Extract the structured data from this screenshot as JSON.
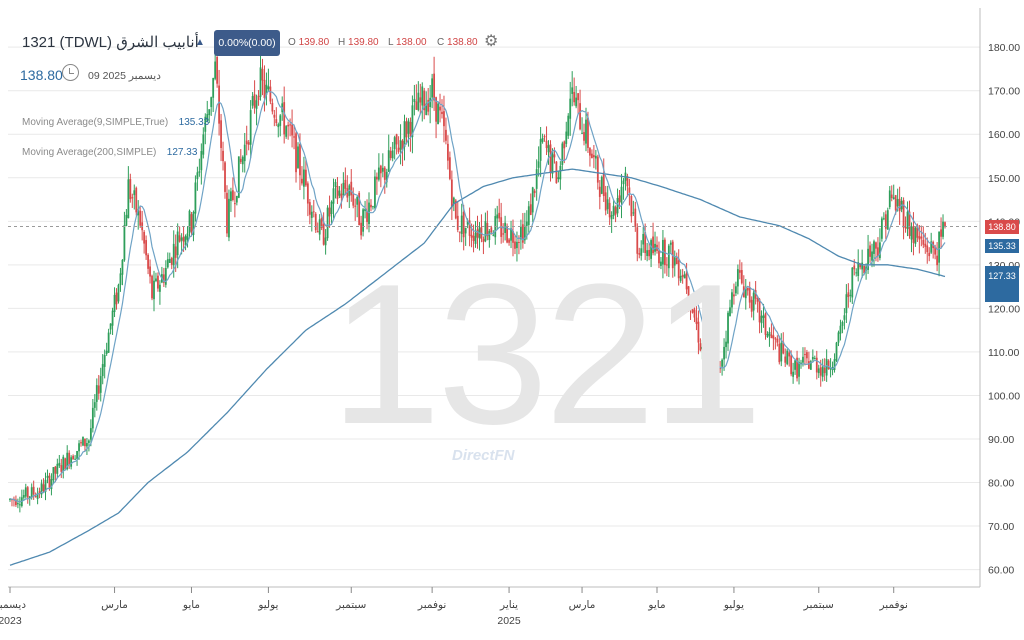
{
  "header": {
    "title": "1321  (TDWL)  أنابيب الشرق",
    "change_badge": "0.00%(0.00)",
    "ohlc": [
      {
        "label": "O",
        "value": "139.80"
      },
      {
        "label": "H",
        "value": "139.80"
      },
      {
        "label": "L",
        "value": "138.00"
      },
      {
        "label": "C",
        "value": "138.80"
      }
    ],
    "last_price": "138.80",
    "date": "09 ديسمبر 2025",
    "icons": {
      "settings": "gear-icon",
      "time": "clock-icon",
      "direction": "triangle-up-icon"
    }
  },
  "indicators": [
    {
      "label": "Moving Average(9,SIMPLE,True)",
      "value": "135.33"
    },
    {
      "label": "Moving Average(200,SIMPLE)",
      "value": "127.33"
    }
  ],
  "watermark": {
    "symbol": "1321",
    "brand": "DirectFN"
  },
  "price_tags": [
    {
      "text": "138.80",
      "color": "#d94a4a",
      "value": 138.8
    },
    {
      "text": "135.33",
      "color": "#2d6aa0",
      "value": 135.33
    },
    {
      "text": "127.33",
      "color": "#2d6aa0",
      "value": 127.33
    }
  ],
  "colors": {
    "up": "#2e9e5a",
    "down": "#d94a4a",
    "ma9": "#6fa3c6",
    "ma200": "#4f89b0",
    "grid": "#e9e9e9"
  },
  "chart_data": {
    "type": "candlestick",
    "y_axis": {
      "ticks": [
        60,
        70,
        80,
        90,
        100,
        110,
        120,
        130,
        140,
        150,
        160,
        170,
        180
      ],
      "labels": [
        "60.00",
        "70.00",
        "80.00",
        "90.00",
        "100.00",
        "110.00",
        "120.00",
        "130.00",
        "140.00",
        "150.00",
        "160.00",
        "170.00",
        "180.00"
      ],
      "ylim": [
        56,
        189
      ]
    },
    "x_axis": {
      "ticks": [
        {
          "label": "ديسمبر",
          "year": "2023",
          "index": 0
        },
        {
          "label": "مارس",
          "year": "",
          "index": 53
        },
        {
          "label": "مايو",
          "year": "",
          "index": 92
        },
        {
          "label": "يوليو",
          "year": "",
          "index": 131
        },
        {
          "label": "سبتمبر",
          "year": "",
          "index": 173
        },
        {
          "label": "نوفمبر",
          "year": "",
          "index": 214
        },
        {
          "label": "يناير",
          "year": "2025",
          "index": 253
        },
        {
          "label": "مارس",
          "year": "",
          "index": 290
        },
        {
          "label": "مايو",
          "year": "",
          "index": 328
        },
        {
          "label": "يوليو",
          "year": "",
          "index": 367
        },
        {
          "label": "سبتمبر",
          "year": "",
          "index": 410
        },
        {
          "label": "نوفمبر",
          "year": "",
          "index": 448
        }
      ],
      "count": 475
    },
    "price_keyframes": [
      [
        0,
        76
      ],
      [
        15,
        78
      ],
      [
        30,
        86
      ],
      [
        40,
        90
      ],
      [
        48,
        110
      ],
      [
        55,
        125
      ],
      [
        60,
        148
      ],
      [
        66,
        140
      ],
      [
        72,
        123
      ],
      [
        78,
        128
      ],
      [
        85,
        136
      ],
      [
        92,
        140
      ],
      [
        98,
        160
      ],
      [
        104,
        175
      ],
      [
        110,
        140
      ],
      [
        118,
        155
      ],
      [
        126,
        172
      ],
      [
        132,
        168
      ],
      [
        140,
        162
      ],
      [
        150,
        148
      ],
      [
        158,
        136
      ],
      [
        165,
        146
      ],
      [
        172,
        148
      ],
      [
        178,
        140
      ],
      [
        186,
        148
      ],
      [
        195,
        156
      ],
      [
        205,
        165
      ],
      [
        214,
        170
      ],
      [
        220,
        160
      ],
      [
        226,
        140
      ],
      [
        234,
        138
      ],
      [
        245,
        139
      ],
      [
        256,
        137
      ],
      [
        262,
        139
      ],
      [
        270,
        158
      ],
      [
        278,
        150
      ],
      [
        284,
        170
      ],
      [
        292,
        160
      ],
      [
        298,
        150
      ],
      [
        306,
        142
      ],
      [
        312,
        152
      ],
      [
        318,
        135
      ],
      [
        326,
        133
      ],
      [
        334,
        133
      ],
      [
        342,
        128
      ],
      [
        350,
        112
      ],
      [
        358,
        102
      ],
      [
        362,
        112
      ],
      [
        368,
        128
      ],
      [
        375,
        123
      ],
      [
        382,
        116
      ],
      [
        390,
        110
      ],
      [
        398,
        106
      ],
      [
        406,
        108
      ],
      [
        414,
        106
      ],
      [
        420,
        112
      ],
      [
        426,
        126
      ],
      [
        434,
        132
      ],
      [
        440,
        135
      ],
      [
        446,
        145
      ],
      [
        452,
        143
      ],
      [
        458,
        137
      ],
      [
        464,
        134
      ],
      [
        470,
        133
      ],
      [
        474,
        138.8
      ]
    ],
    "ma200_keyframes": [
      [
        0,
        61
      ],
      [
        20,
        64
      ],
      [
        40,
        69
      ],
      [
        55,
        73
      ],
      [
        70,
        80
      ],
      [
        90,
        87
      ],
      [
        110,
        96
      ],
      [
        130,
        106
      ],
      [
        150,
        115
      ],
      [
        170,
        121
      ],
      [
        190,
        128
      ],
      [
        210,
        135
      ],
      [
        225,
        144
      ],
      [
        240,
        148
      ],
      [
        255,
        150
      ],
      [
        270,
        151
      ],
      [
        285,
        152
      ],
      [
        300,
        151
      ],
      [
        315,
        150
      ],
      [
        330,
        148
      ],
      [
        350,
        145
      ],
      [
        370,
        141
      ],
      [
        390,
        139
      ],
      [
        405,
        136
      ],
      [
        420,
        132
      ],
      [
        432,
        130
      ],
      [
        445,
        130
      ],
      [
        460,
        129
      ],
      [
        474,
        127.33
      ]
    ],
    "last": {
      "open": 139.8,
      "high": 139.8,
      "low": 138.0,
      "close": 138.8
    }
  }
}
